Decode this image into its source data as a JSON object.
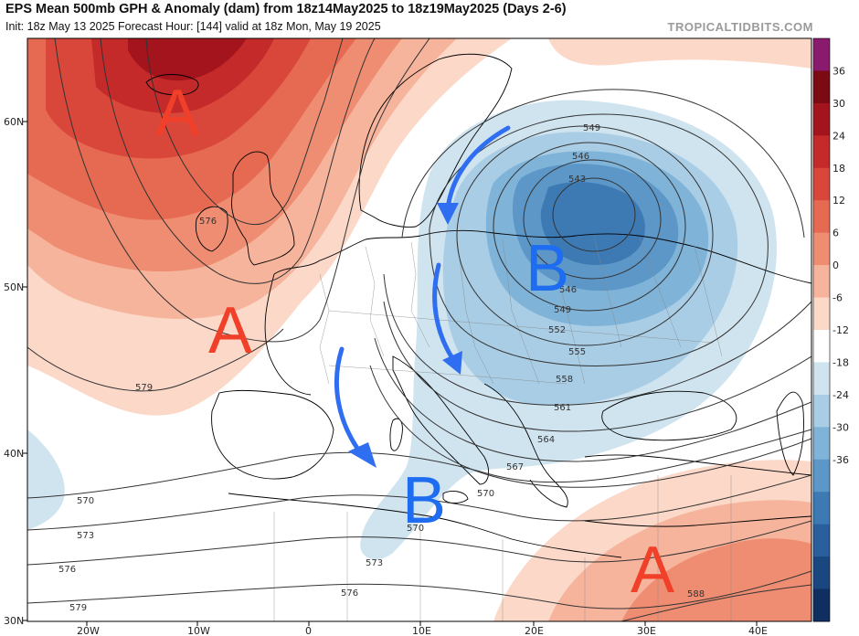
{
  "header": {
    "title": "EPS Mean 500mb GPH & Anomaly (dam) from 18z14May2025 to 18z19May2025 (Days 2-6)",
    "subtitle": "Init: 18z May 13 2025   Forecast Hour: [144]   valid at 18z Mon, May 19 2025",
    "brand": "TROPICALTIDBITS.COM"
  },
  "lat_labels": [
    "60N",
    "50N",
    "40N",
    "30N"
  ],
  "lon_labels": [
    "20W",
    "10W",
    "0",
    "10E",
    "20E",
    "30E",
    "40E"
  ],
  "contour_labels": [
    "549",
    "546",
    "543",
    "546",
    "549",
    "552",
    "555",
    "558",
    "561",
    "564",
    "567",
    "570",
    "570",
    "573",
    "576",
    "579",
    "570",
    "573",
    "576",
    "579",
    "588",
    "576"
  ],
  "colorbar": {
    "labels": [
      "36",
      "30",
      "24",
      "18",
      "12",
      "6",
      "0",
      "-6",
      "-12",
      "-18",
      "-24",
      "-30",
      "-36"
    ],
    "colors": [
      "#8a1a6e",
      "#7b0a15",
      "#a3141c",
      "#c42a2a",
      "#d9473a",
      "#e66a52",
      "#ef8d72",
      "#f6b49c",
      "#fbd8c8",
      "#ffffff",
      "#d0e4f0",
      "#a9cde5",
      "#7fb3d8",
      "#5c97c8",
      "#3d7ab4",
      "#285f9c",
      "#1a4780",
      "#0f2f60"
    ]
  },
  "annotations": [
    {
      "text": "A",
      "color": "#f0402a"
    },
    {
      "text": "A",
      "color": "#f0402a"
    },
    {
      "text": "A",
      "color": "#f0402a"
    },
    {
      "text": "B",
      "color": "#1e6cf0"
    },
    {
      "text": "B",
      "color": "#1e6cf0"
    }
  ],
  "colors": {
    "positive_anomaly": "#e66a52",
    "negative_anomaly": "#5c97c8",
    "arrow": "#2f6ef0"
  }
}
